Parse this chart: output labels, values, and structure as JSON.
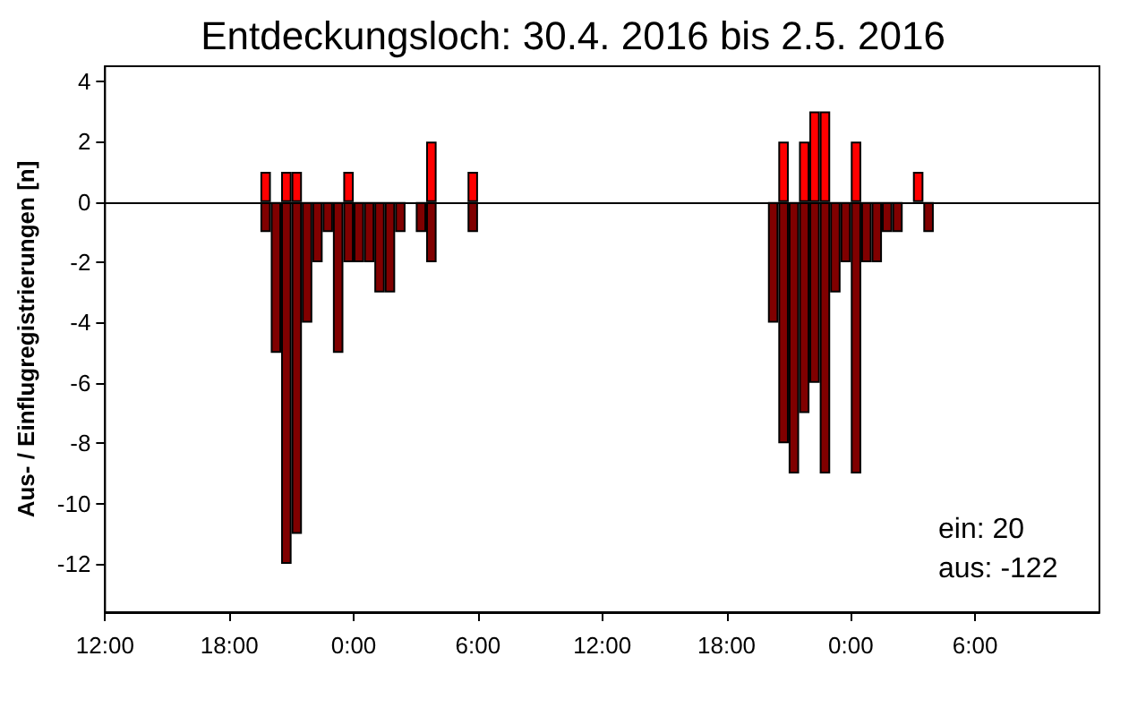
{
  "chart_data": {
    "type": "bar",
    "title": "Entdeckungsloch: 30.4. 2016 bis 2.5. 2016",
    "ylabel": "Aus- / Einflugregistrierungen [n]",
    "xlim": [
      "2016-04-30T12:00",
      "2016-05-02T12:00"
    ],
    "xticks": [
      {
        "value": "2016-04-30T12:00",
        "label": "12:00"
      },
      {
        "value": "2016-04-30T18:00",
        "label": "18:00"
      },
      {
        "value": "2016-05-01T00:00",
        "label": "0:00"
      },
      {
        "value": "2016-05-01T06:00",
        "label": "6:00"
      },
      {
        "value": "2016-05-01T12:00",
        "label": "12:00"
      },
      {
        "value": "2016-05-01T18:00",
        "label": "18:00"
      },
      {
        "value": "2016-05-02T00:00",
        "label": "0:00"
      },
      {
        "value": "2016-05-02T06:00",
        "label": "6:00"
      }
    ],
    "ylim": [
      -13.6,
      4.5
    ],
    "yticks": [
      -12,
      -10,
      -8,
      -6,
      -4,
      -2,
      0,
      2,
      4
    ],
    "series": [
      {
        "color": "#800000",
        "x": [
          "2016-04-30T19:45",
          "2016-04-30T20:15",
          "2016-04-30T20:45",
          "2016-04-30T21:15",
          "2016-04-30T21:45",
          "2016-04-30T22:15",
          "2016-04-30T22:45",
          "2016-04-30T23:15",
          "2016-04-30T23:45",
          "2016-05-01T00:15",
          "2016-05-01T00:45",
          "2016-05-01T01:15",
          "2016-05-01T01:45",
          "2016-05-01T02:15",
          "2016-05-01T03:15",
          "2016-05-01T03:45",
          "2016-05-01T05:45",
          "2016-05-01T20:15",
          "2016-05-01T20:45",
          "2016-05-01T21:15",
          "2016-05-01T21:45",
          "2016-05-01T22:15",
          "2016-05-01T22:45",
          "2016-05-01T23:15",
          "2016-05-01T23:45",
          "2016-05-02T00:15",
          "2016-05-02T00:45",
          "2016-05-02T01:15",
          "2016-05-02T01:45",
          "2016-05-02T02:15",
          "2016-05-02T03:45"
        ],
        "values": [
          -1,
          -5,
          -12,
          -11,
          -4,
          -2,
          -1,
          -5,
          -2,
          -2,
          -2,
          -3,
          -3,
          -1,
          -1,
          -2,
          -1,
          -4,
          -8,
          -9,
          -7,
          -6,
          -9,
          -3,
          -2,
          -9,
          -2,
          -2,
          -1,
          -1,
          -1
        ]
      },
      {
        "color": "#ff0000",
        "x": [
          "2016-04-30T19:45",
          "2016-04-30T20:45",
          "2016-04-30T21:15",
          "2016-04-30T23:45",
          "2016-05-01T03:45",
          "2016-05-01T05:45",
          "2016-05-01T20:45",
          "2016-05-01T21:45",
          "2016-05-01T22:15",
          "2016-05-01T22:45",
          "2016-05-02T00:15",
          "2016-05-02T03:15"
        ],
        "values": [
          1,
          1,
          1,
          1,
          2,
          1,
          2,
          2,
          3,
          3,
          2,
          1
        ]
      }
    ],
    "ref_lines": [
      {
        "axis": "y",
        "value": 0,
        "label": null,
        "color": "#000000"
      }
    ],
    "annotations": [
      "ein: 20",
      "aus: -122"
    ],
    "grid": false
  }
}
